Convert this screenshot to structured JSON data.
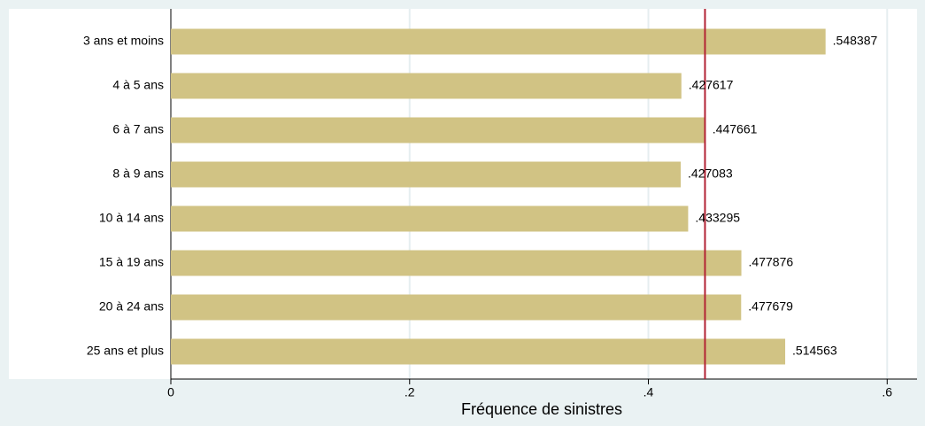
{
  "chart_data": {
    "type": "hbar",
    "categories": [
      "3 ans et moins",
      "4 à 5 ans",
      "6 à 7 ans",
      "8 à 9 ans",
      "10 à 14 ans",
      "15 à 19 ans",
      "20 à 24 ans",
      "25 ans et plus"
    ],
    "values": [
      0.548387,
      0.427617,
      0.447661,
      0.427083,
      0.433295,
      0.477876,
      0.477679,
      0.514563
    ],
    "value_labels": [
      ".548387",
      ".427617",
      ".447661",
      ".427083",
      ".433295",
      ".477876",
      ".477679",
      ".514563"
    ],
    "color": "#d1c384",
    "xlabel": "Fréquence de sinistres",
    "xlim": [
      0,
      0.625
    ],
    "xticks": [
      0,
      {
        "value": 0.2,
        "label": ".2"
      },
      {
        "value": 0.4,
        "label": ".4"
      },
      {
        "value": 0.6,
        "label": ".6"
      }
    ],
    "grid": true,
    "reference_line": 0.4474,
    "reference_color": "#b22234"
  }
}
